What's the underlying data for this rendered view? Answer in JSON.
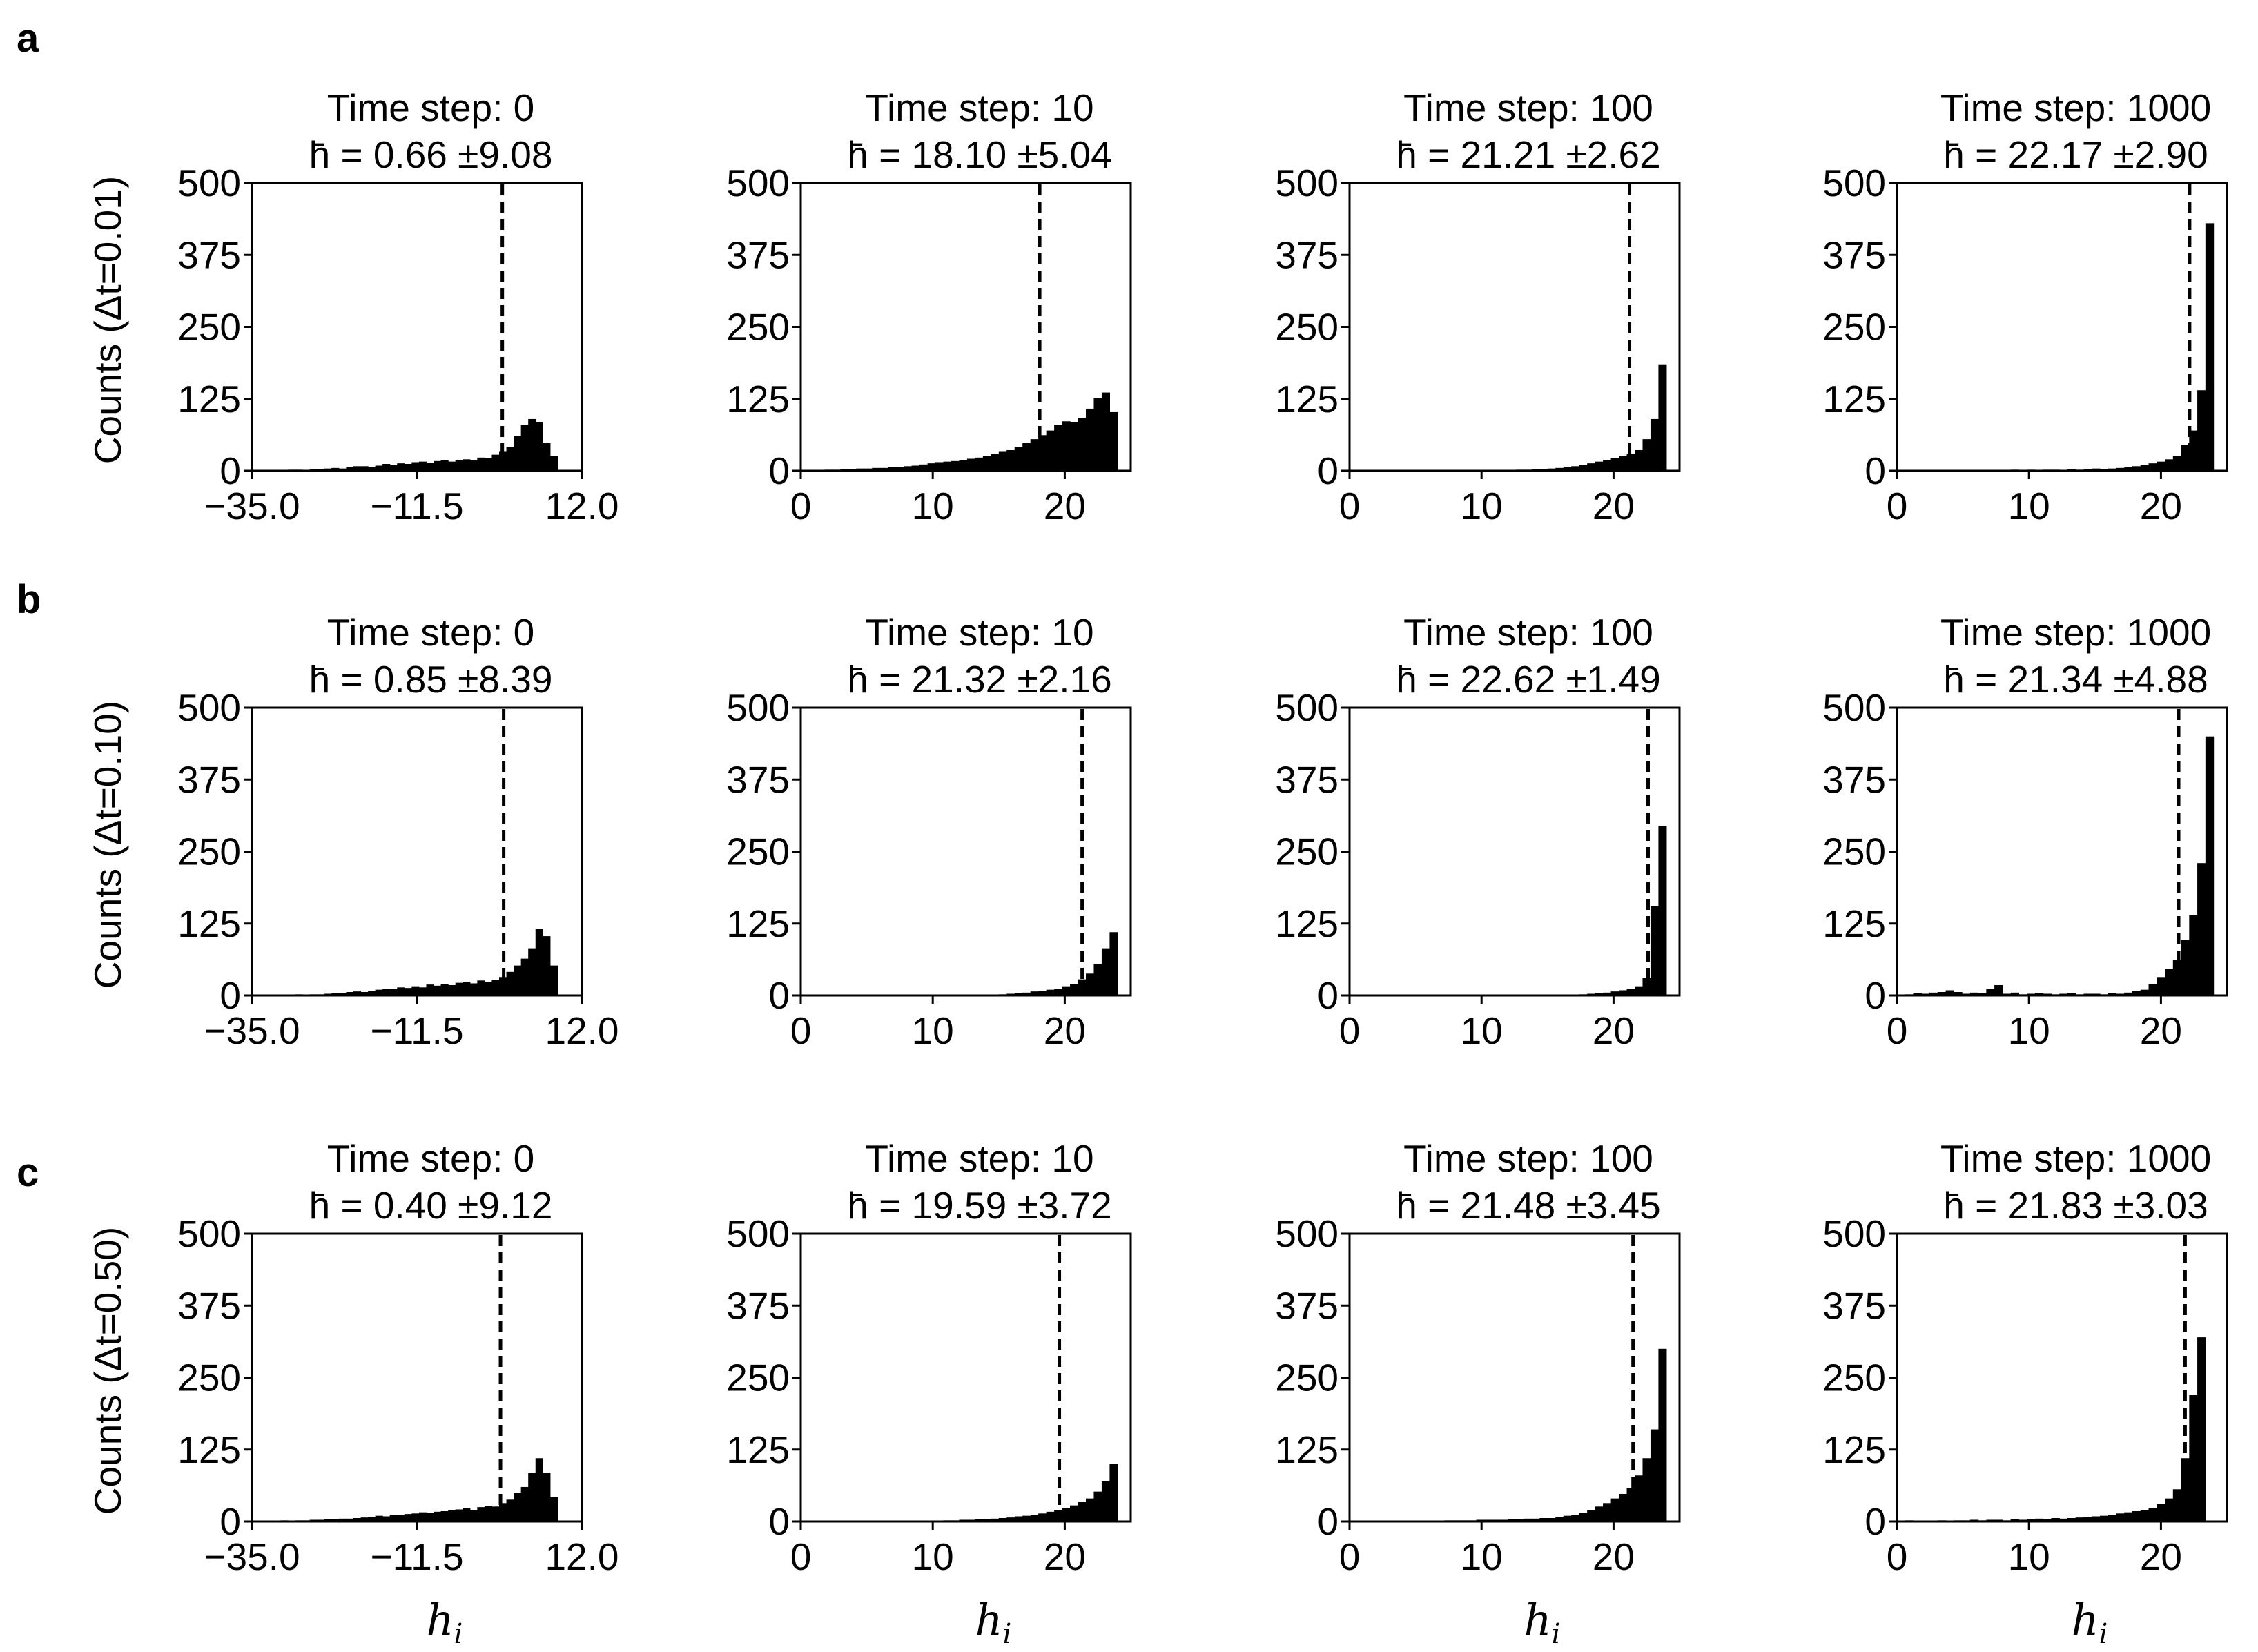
{
  "figure": {
    "row_labels": [
      "a",
      "b",
      "c"
    ],
    "ylabels": [
      "Counts (Δt=0.01)",
      "Counts (Δt=0.10)",
      "Counts (Δt=0.50)"
    ],
    "xlabel": "h_i",
    "xlabel_text": "h",
    "xlabel_sub": "i"
  },
  "chart_data": [
    {
      "type": "bar",
      "row": 0,
      "col": 0,
      "title": "Time step: 0",
      "stat": "h̄ = 0.66 ±9.08",
      "mean": 0.66,
      "xlim": [
        -35,
        12
      ],
      "ylim": [
        0,
        500
      ],
      "xticks": [
        -35,
        -11.5,
        12
      ],
      "xtick_labels": [
        "−35.0",
        "−11.5",
        "12.0"
      ],
      "yticks": [
        0,
        125,
        250,
        375,
        500
      ],
      "bin_range": [
        -33,
        8.5
      ],
      "values": [
        1,
        1,
        1,
        2,
        2,
        1,
        3,
        3,
        4,
        5,
        4,
        6,
        8,
        8,
        6,
        9,
        12,
        10,
        13,
        12,
        15,
        16,
        14,
        17,
        18,
        16,
        18,
        20,
        18,
        23,
        22,
        28,
        33,
        42,
        60,
        80,
        90,
        85,
        48,
        26
      ]
    },
    {
      "type": "bar",
      "row": 0,
      "col": 1,
      "title": "Time step: 10",
      "stat": "h̄ = 18.10 ±5.04",
      "mean": 18.1,
      "xlim": [
        0,
        25
      ],
      "ylim": [
        0,
        500
      ],
      "xticks": [
        0,
        10,
        20
      ],
      "xtick_labels": [
        "0",
        "10",
        "20"
      ],
      "yticks": [
        0,
        125,
        250,
        375,
        500
      ],
      "bin_range": [
        0,
        24
      ],
      "values": [
        1,
        1,
        1,
        2,
        2,
        3,
        3,
        4,
        4,
        5,
        5,
        6,
        7,
        8,
        9,
        11,
        13,
        15,
        16,
        17,
        19,
        21,
        23,
        26,
        29,
        33,
        36,
        41,
        48,
        55,
        62,
        70,
        80,
        86,
        85,
        92,
        108,
        126,
        136,
        102
      ]
    },
    {
      "type": "bar",
      "row": 0,
      "col": 2,
      "title": "Time step: 100",
      "stat": "h̄ = 21.21 ±2.62",
      "mean": 21.21,
      "xlim": [
        0,
        25
      ],
      "ylim": [
        0,
        500
      ],
      "xticks": [
        0,
        10,
        20
      ],
      "xtick_labels": [
        "0",
        "10",
        "20"
      ],
      "yticks": [
        0,
        125,
        250,
        375,
        500
      ],
      "bin_range": [
        0,
        24
      ],
      "values": [
        0,
        0,
        0,
        0,
        0,
        0,
        0,
        0,
        0,
        0,
        0,
        0,
        0,
        0,
        0,
        0,
        1,
        1,
        1,
        1,
        1,
        2,
        2,
        3,
        3,
        4,
        5,
        6,
        8,
        10,
        13,
        16,
        19,
        22,
        26,
        30,
        36,
        55,
        90,
        185
      ]
    },
    {
      "type": "bar",
      "row": 0,
      "col": 3,
      "title": "Time step: 1000",
      "stat": "h̄ = 22.17 ±2.90",
      "mean": 22.17,
      "xlim": [
        0,
        25
      ],
      "ylim": [
        0,
        500
      ],
      "xticks": [
        0,
        10,
        20
      ],
      "xtick_labels": [
        "0",
        "10",
        "20"
      ],
      "yticks": [
        0,
        125,
        250,
        375,
        500
      ],
      "bin_range": [
        0,
        24.6
      ],
      "values": [
        0,
        0,
        1,
        0,
        1,
        0,
        1,
        1,
        0,
        1,
        1,
        0,
        1,
        1,
        2,
        1,
        2,
        1,
        2,
        2,
        1,
        3,
        2,
        3,
        4,
        3,
        4,
        5,
        6,
        8,
        10,
        13,
        16,
        20,
        26,
        45,
        70,
        140,
        430,
        0
      ]
    },
    {
      "type": "bar",
      "row": 1,
      "col": 0,
      "title": "Time step: 0",
      "stat": "h̄ = 0.85 ±8.39",
      "mean": 0.85,
      "xlim": [
        -35,
        12
      ],
      "ylim": [
        0,
        500
      ],
      "xticks": [
        -35,
        -11.5,
        12
      ],
      "xtick_labels": [
        "−35.0",
        "−11.5",
        "12.0"
      ],
      "yticks": [
        0,
        125,
        250,
        375,
        500
      ],
      "bin_range": [
        -33,
        8.5
      ],
      "values": [
        0,
        1,
        1,
        1,
        2,
        1,
        2,
        2,
        3,
        4,
        4,
        6,
        7,
        6,
        8,
        10,
        12,
        11,
        14,
        13,
        16,
        14,
        19,
        17,
        20,
        18,
        22,
        24,
        21,
        26,
        24,
        27,
        32,
        41,
        52,
        64,
        82,
        116,
        103,
        52
      ]
    },
    {
      "type": "bar",
      "row": 1,
      "col": 1,
      "title": "Time step: 10",
      "stat": "h̄ = 21.32 ±2.16",
      "mean": 21.32,
      "xlim": [
        0,
        25
      ],
      "ylim": [
        0,
        500
      ],
      "xticks": [
        0,
        10,
        20
      ],
      "xtick_labels": [
        "0",
        "10",
        "20"
      ],
      "yticks": [
        0,
        125,
        250,
        375,
        500
      ],
      "bin_range": [
        0,
        24
      ],
      "values": [
        0,
        0,
        0,
        0,
        0,
        0,
        0,
        0,
        0,
        0,
        0,
        0,
        0,
        0,
        0,
        0,
        0,
        0,
        0,
        0,
        0,
        0,
        0,
        0,
        1,
        2,
        3,
        4,
        5,
        7,
        8,
        10,
        12,
        16,
        20,
        28,
        38,
        55,
        82,
        110
      ]
    },
    {
      "type": "bar",
      "row": 1,
      "col": 2,
      "title": "Time step: 100",
      "stat": "h̄ = 22.62 ±1.49",
      "mean": 22.62,
      "xlim": [
        0,
        25
      ],
      "ylim": [
        0,
        500
      ],
      "xticks": [
        0,
        10,
        20
      ],
      "xtick_labels": [
        "0",
        "10",
        "20"
      ],
      "yticks": [
        0,
        125,
        250,
        375,
        500
      ],
      "bin_range": [
        0,
        24
      ],
      "values": [
        0,
        0,
        0,
        0,
        0,
        0,
        0,
        0,
        0,
        0,
        0,
        0,
        0,
        0,
        0,
        0,
        0,
        0,
        0,
        0,
        0,
        0,
        0,
        0,
        0,
        0,
        0,
        0,
        1,
        2,
        3,
        4,
        5,
        7,
        9,
        12,
        16,
        30,
        155,
        295
      ]
    },
    {
      "type": "bar",
      "row": 1,
      "col": 3,
      "title": "Time step: 1000",
      "stat": "h̄ = 21.34 ±4.88",
      "mean": 21.34,
      "xlim": [
        0,
        25
      ],
      "ylim": [
        0,
        500
      ],
      "xticks": [
        0,
        10,
        20
      ],
      "xtick_labels": [
        "0",
        "10",
        "20"
      ],
      "yticks": [
        0,
        125,
        250,
        375,
        500
      ],
      "bin_range": [
        0,
        24.6
      ],
      "values": [
        0,
        2,
        4,
        3,
        5,
        6,
        9,
        6,
        3,
        5,
        4,
        12,
        18,
        3,
        5,
        2,
        3,
        4,
        3,
        2,
        3,
        4,
        2,
        3,
        3,
        2,
        4,
        3,
        5,
        8,
        10,
        20,
        32,
        46,
        62,
        96,
        140,
        230,
        450,
        0
      ]
    },
    {
      "type": "bar",
      "row": 2,
      "col": 0,
      "title": "Time step: 0",
      "stat": "h̄ = 0.40 ±9.12",
      "mean": 0.4,
      "xlim": [
        -35,
        12
      ],
      "ylim": [
        0,
        500
      ],
      "xticks": [
        -35,
        -11.5,
        12
      ],
      "xtick_labels": [
        "−35.0",
        "−11.5",
        "12.0"
      ],
      "yticks": [
        0,
        125,
        250,
        375,
        500
      ],
      "bin_range": [
        -33,
        8.5
      ],
      "values": [
        1,
        1,
        2,
        1,
        2,
        2,
        3,
        3,
        4,
        4,
        5,
        5,
        6,
        7,
        8,
        10,
        9,
        12,
        12,
        13,
        14,
        16,
        15,
        17,
        18,
        20,
        21,
        23,
        20,
        25,
        27,
        26,
        32,
        38,
        50,
        60,
        84,
        110,
        85,
        42
      ]
    },
    {
      "type": "bar",
      "row": 2,
      "col": 1,
      "title": "Time step: 10",
      "stat": "h̄ = 19.59 ±3.72",
      "mean": 19.59,
      "xlim": [
        0,
        25
      ],
      "ylim": [
        0,
        500
      ],
      "xticks": [
        0,
        10,
        20
      ],
      "xtick_labels": [
        "0",
        "10",
        "20"
      ],
      "yticks": [
        0,
        125,
        250,
        375,
        500
      ],
      "bin_range": [
        0,
        24
      ],
      "values": [
        0,
        0,
        0,
        0,
        0,
        0,
        0,
        0,
        0,
        0,
        0,
        0,
        0,
        0,
        1,
        1,
        1,
        1,
        2,
        2,
        3,
        3,
        4,
        4,
        5,
        6,
        7,
        9,
        10,
        12,
        14,
        17,
        20,
        24,
        28,
        34,
        40,
        52,
        70,
        100
      ]
    },
    {
      "type": "bar",
      "row": 2,
      "col": 2,
      "title": "Time step: 100",
      "stat": "h̄ = 21.48 ±3.45",
      "mean": 21.48,
      "xlim": [
        0,
        25
      ],
      "ylim": [
        0,
        500
      ],
      "xticks": [
        0,
        10,
        20
      ],
      "xtick_labels": [
        "0",
        "10",
        "20"
      ],
      "yticks": [
        0,
        125,
        250,
        375,
        500
      ],
      "bin_range": [
        0,
        24
      ],
      "values": [
        0,
        0,
        0,
        0,
        0,
        0,
        0,
        1,
        1,
        1,
        1,
        1,
        2,
        2,
        2,
        2,
        3,
        3,
        3,
        3,
        4,
        4,
        5,
        5,
        6,
        6,
        8,
        10,
        12,
        15,
        20,
        26,
        32,
        40,
        48,
        58,
        80,
        110,
        160,
        300
      ]
    },
    {
      "type": "bar",
      "row": 2,
      "col": 3,
      "title": "Time step: 1000",
      "stat": "h̄ = 21.83 ±3.03",
      "mean": 21.83,
      "xlim": [
        0,
        25
      ],
      "ylim": [
        0,
        500
      ],
      "xticks": [
        0,
        10,
        20
      ],
      "xtick_labels": [
        "0",
        "10",
        "20"
      ],
      "yticks": [
        0,
        125,
        250,
        375,
        500
      ],
      "bin_range": [
        0,
        24.6
      ],
      "values": [
        0,
        2,
        1,
        1,
        1,
        2,
        1,
        2,
        2,
        3,
        2,
        3,
        3,
        2,
        4,
        3,
        4,
        5,
        4,
        6,
        5,
        6,
        7,
        8,
        9,
        10,
        12,
        14,
        16,
        18,
        20,
        24,
        30,
        40,
        56,
        110,
        220,
        320,
        0,
        0
      ]
    }
  ]
}
